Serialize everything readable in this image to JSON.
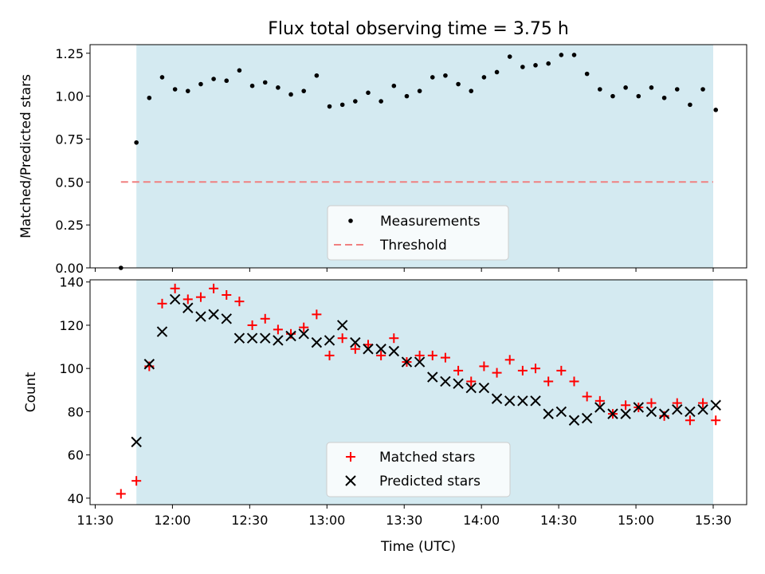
{
  "chart_data": [
    {
      "type": "scatter",
      "title": "Flux total observing time = 3.75 h",
      "xlabel": "",
      "ylabel": "Matched/Predicted stars",
      "xlim": [
        "11:28",
        "15:43"
      ],
      "ylim": [
        0,
        1.3
      ],
      "x_tick_labels": [
        "11:30",
        "12:00",
        "12:30",
        "13:00",
        "13:30",
        "14:00",
        "14:30",
        "15:00",
        "15:30"
      ],
      "y_ticks": [
        "0.00",
        "0.25",
        "0.50",
        "0.75",
        "1.00",
        "1.25"
      ],
      "shaded_interval": [
        "11:46",
        "15:30"
      ],
      "shade_color": "#d4eaf1",
      "legend_position": "lower-center",
      "series": [
        {
          "name": "Measurements",
          "marker": "dot",
          "color": "#000000",
          "x": [
            "11:40",
            "11:46",
            "11:51",
            "11:56",
            "12:01",
            "12:06",
            "12:11",
            "12:16",
            "12:21",
            "12:26",
            "12:31",
            "12:36",
            "12:41",
            "12:46",
            "12:51",
            "12:56",
            "13:01",
            "13:06",
            "13:11",
            "13:16",
            "13:21",
            "13:26",
            "13:31",
            "13:36",
            "13:41",
            "13:46",
            "13:51",
            "13:56",
            "14:01",
            "14:06",
            "14:11",
            "14:16",
            "14:21",
            "14:26",
            "14:31",
            "14:36",
            "14:41",
            "14:46",
            "14:51",
            "14:56",
            "15:01",
            "15:06",
            "15:11",
            "15:16",
            "15:21",
            "15:26",
            "15:31"
          ],
          "values": [
            0.0,
            0.73,
            0.99,
            1.11,
            1.04,
            1.03,
            1.07,
            1.1,
            1.09,
            1.15,
            1.06,
            1.08,
            1.05,
            1.01,
            1.03,
            1.12,
            0.94,
            0.95,
            0.97,
            1.02,
            0.97,
            1.06,
            1.0,
            1.03,
            1.11,
            1.12,
            1.07,
            1.03,
            1.11,
            1.14,
            1.23,
            1.17,
            1.18,
            1.19,
            1.24,
            1.24,
            1.13,
            1.04,
            1.0,
            1.05,
            1.0,
            1.05,
            0.99,
            1.04,
            0.95,
            1.04,
            0.92
          ]
        },
        {
          "name": "Threshold",
          "marker": "dashed-line",
          "color": "#f08080",
          "x": [
            "11:40",
            "15:30"
          ],
          "values": [
            0.5,
            0.5
          ]
        }
      ]
    },
    {
      "type": "scatter",
      "title": "",
      "xlabel": "Time (UTC)",
      "ylabel": "Count",
      "xlim": [
        "11:28",
        "15:43"
      ],
      "ylim": [
        37,
        141
      ],
      "x_tick_labels": [
        "11:30",
        "12:00",
        "12:30",
        "13:00",
        "13:30",
        "14:00",
        "14:30",
        "15:00",
        "15:30"
      ],
      "y_ticks": [
        "40",
        "60",
        "80",
        "100",
        "120",
        "140"
      ],
      "shaded_interval": [
        "11:46",
        "15:30"
      ],
      "shade_color": "#d4eaf1",
      "legend_position": "lower-center",
      "series": [
        {
          "name": "Matched stars",
          "marker": "plus",
          "color": "#ff0000",
          "x": [
            "11:40",
            "11:46",
            "11:51",
            "11:56",
            "12:01",
            "12:06",
            "12:11",
            "12:16",
            "12:21",
            "12:26",
            "12:31",
            "12:36",
            "12:41",
            "12:46",
            "12:51",
            "12:56",
            "13:01",
            "13:06",
            "13:11",
            "13:16",
            "13:21",
            "13:26",
            "13:31",
            "13:36",
            "13:41",
            "13:46",
            "13:51",
            "13:56",
            "14:01",
            "14:06",
            "14:11",
            "14:16",
            "14:21",
            "14:26",
            "14:31",
            "14:36",
            "14:41",
            "14:46",
            "14:51",
            "14:56",
            "15:01",
            "15:06",
            "15:11",
            "15:16",
            "15:21",
            "15:26",
            "15:31"
          ],
          "values": [
            42,
            48,
            101,
            130,
            137,
            132,
            133,
            137,
            134,
            131,
            120,
            123,
            118,
            116,
            119,
            125,
            106,
            114,
            109,
            111,
            106,
            114,
            103,
            106,
            106,
            105,
            99,
            94,
            101,
            98,
            104,
            99,
            100,
            94,
            99,
            94,
            87,
            85,
            79,
            83,
            82,
            84,
            78,
            84,
            76,
            84,
            76
          ]
        },
        {
          "name": "Predicted stars",
          "marker": "x",
          "color": "#000000",
          "x": [
            "11:46",
            "11:51",
            "11:56",
            "12:01",
            "12:06",
            "12:11",
            "12:16",
            "12:21",
            "12:26",
            "12:31",
            "12:36",
            "12:41",
            "12:46",
            "12:51",
            "12:56",
            "13:01",
            "13:06",
            "13:11",
            "13:16",
            "13:21",
            "13:26",
            "13:31",
            "13:36",
            "13:41",
            "13:46",
            "13:51",
            "13:56",
            "14:01",
            "14:06",
            "14:11",
            "14:16",
            "14:21",
            "14:26",
            "14:31",
            "14:36",
            "14:41",
            "14:46",
            "14:51",
            "14:56",
            "15:01",
            "15:06",
            "15:11",
            "15:16",
            "15:21",
            "15:26",
            "15:31"
          ],
          "values": [
            66,
            102,
            117,
            132,
            128,
            124,
            125,
            123,
            114,
            114,
            114,
            113,
            115,
            116,
            112,
            113,
            120,
            112,
            109,
            109,
            108,
            103,
            103,
            96,
            94,
            93,
            91,
            91,
            86,
            85,
            85,
            85,
            79,
            80,
            76,
            77,
            82,
            79,
            79,
            82,
            80,
            79,
            81,
            80,
            81,
            83
          ]
        }
      ]
    }
  ]
}
